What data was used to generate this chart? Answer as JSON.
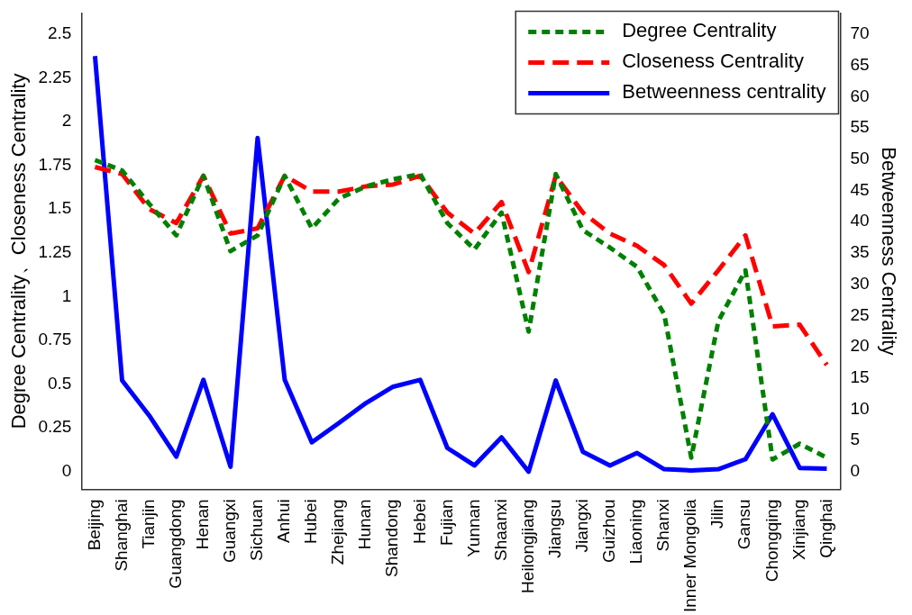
{
  "chart_data": {
    "type": "line",
    "ylabel": "Degree Centrality、Closeness Centrality",
    "y2label": "Betweenness Centrality",
    "categories": [
      "Beijing",
      "Shanghai",
      "Tianjin",
      "Guangdong",
      "Henan",
      "Guangxi",
      "Sichuan",
      "Anhui",
      "Hubei",
      "Zhejiang",
      "Hunan",
      "Shandong",
      "Hebei",
      "Fujian",
      "Yunnan",
      "Shaanxi",
      "Heilongjiang",
      "Jiangsu",
      "Jiangxi",
      "Guizhou",
      "Liaoning",
      "Shanxi",
      "Inner Mongolia",
      "Jilin",
      "Gansu",
      "Chongqing",
      "Xinjiang",
      "Qinghai"
    ],
    "series": [
      {
        "name": "Degree Centrality",
        "color": "#008000",
        "line_style": "dotted",
        "values": [
          1.78,
          1.72,
          1.53,
          1.35,
          1.69,
          1.26,
          1.35,
          1.69,
          1.39,
          1.56,
          1.63,
          1.67,
          1.7,
          1.42,
          1.27,
          1.48,
          0.8,
          1.7,
          1.38,
          1.28,
          1.17,
          0.9,
          0.08,
          0.86,
          1.15,
          0.07,
          0.16,
          0.08
        ]
      },
      {
        "name": "Closeness Centrality",
        "color": "#ff0000",
        "line_style": "dashed",
        "values": [
          1.74,
          1.7,
          1.5,
          1.42,
          1.69,
          1.36,
          1.39,
          1.69,
          1.6,
          1.6,
          1.63,
          1.64,
          1.69,
          1.48,
          1.36,
          1.54,
          1.14,
          1.69,
          1.48,
          1.36,
          1.29,
          1.18,
          0.96,
          1.15,
          1.35,
          0.83,
          0.84,
          0.61
        ]
      },
      {
        "name": "Betweenness centrality",
        "color": "#0000ff",
        "line_style": "solid",
        "axis": "y2",
        "values": [
          66.5,
          14.6,
          9,
          2.4,
          14.7,
          0.8,
          53.4,
          14.7,
          4.7,
          7.8,
          11,
          13.6,
          14.7,
          3.8,
          1,
          5.5,
          0,
          14.6,
          3.2,
          1,
          3,
          0.4,
          0.2,
          0.4,
          2,
          9.2,
          0.6,
          0.5
        ]
      }
    ],
    "ylim": [
      -0.1,
      2.62
    ],
    "yticks": [
      0,
      0.25,
      0.5,
      0.75,
      1,
      1.25,
      1.5,
      1.75,
      2,
      2.25,
      2.5
    ],
    "y2lim": [
      -2.8,
      73.4
    ],
    "y2ticks": [
      0,
      5,
      10,
      15,
      20,
      25,
      30,
      35,
      40,
      45,
      50,
      55,
      60,
      65,
      70
    ],
    "legend": "top right",
    "grid": false
  }
}
